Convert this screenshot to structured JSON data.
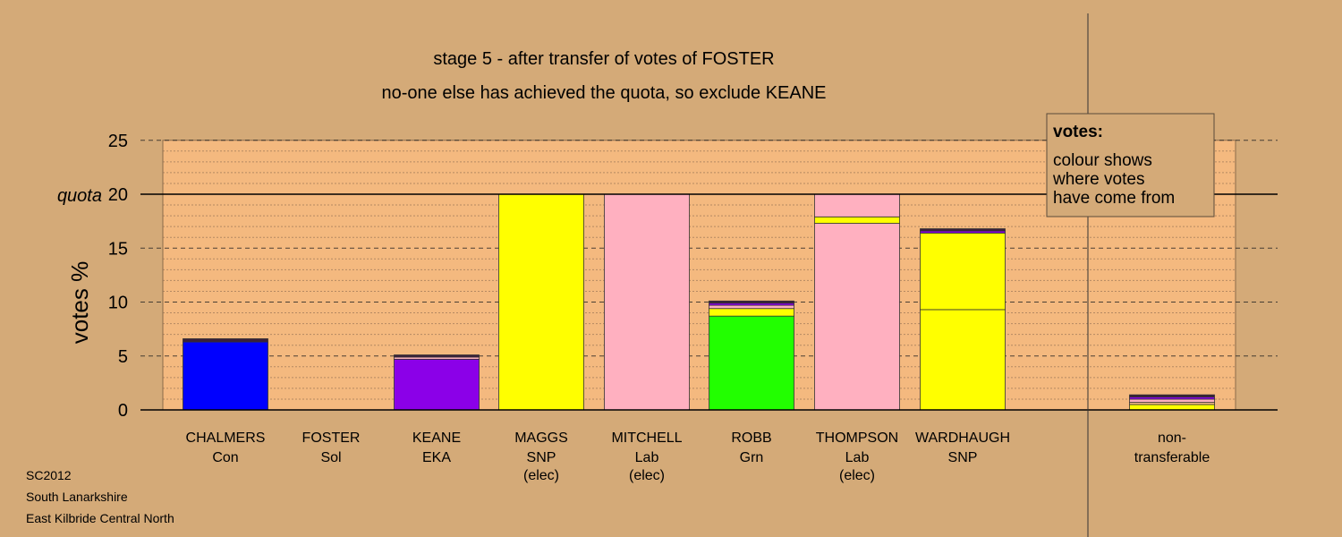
{
  "colors": {
    "background": "#d4aa78",
    "plot_area": "#f4b97f",
    "Con": "#0000ff",
    "EKA": "#8b00e8",
    "SNP": "#ffff00",
    "Lab": "#ffb0c0",
    "Grn": "#22ff00",
    "dark": "#3a1f3a"
  },
  "chart_data": {
    "type": "bar",
    "title": "stage 5 - after transfer of votes of FOSTER",
    "subtitle": "no-one else has achieved the quota, so exclude KEANE",
    "ylabel": "votes %",
    "ylim": [
      0,
      25
    ],
    "yticks": [
      "0",
      "5",
      "10",
      "15",
      "20",
      "25"
    ],
    "quota": {
      "value": 20,
      "label": "quota"
    },
    "legend": {
      "title": "votes:",
      "lines": [
        "colour shows",
        "where votes",
        "have come from"
      ],
      "placement": "top-right"
    },
    "categories": [
      {
        "lines": [
          "CHALMERS",
          "Con"
        ],
        "segments": [
          {
            "value": 6.3,
            "color": "#0000ff"
          },
          {
            "value": 0.3,
            "color": "#3a1f3a"
          }
        ]
      },
      {
        "lines": [
          "FOSTER",
          "Sol"
        ],
        "segments": []
      },
      {
        "lines": [
          "KEANE",
          "EKA"
        ],
        "segments": [
          {
            "value": 4.7,
            "color": "#8b00e8"
          },
          {
            "value": 0.2,
            "color": "#ffb0c0"
          },
          {
            "value": 0.2,
            "color": "#3a1f3a"
          }
        ]
      },
      {
        "lines": [
          "MAGGS",
          "SNP",
          "(elec)"
        ],
        "segments": [
          {
            "value": 20,
            "color": "#ffff00"
          }
        ]
      },
      {
        "lines": [
          "MITCHELL",
          "Lab",
          "(elec)"
        ],
        "segments": [
          {
            "value": 20,
            "color": "#ffb0c0"
          }
        ]
      },
      {
        "lines": [
          "ROBB",
          "Grn"
        ],
        "segments": [
          {
            "value": 8.7,
            "color": "#22ff00"
          },
          {
            "value": 0.7,
            "color": "#ffff00"
          },
          {
            "value": 0.3,
            "color": "#ffb0c0"
          },
          {
            "value": 0.2,
            "color": "#8b00e8"
          },
          {
            "value": 0.2,
            "color": "#3a1f3a"
          }
        ]
      },
      {
        "lines": [
          "THOMPSON",
          "Lab",
          "(elec)"
        ],
        "segments": [
          {
            "value": 17.3,
            "color": "#ffb0c0"
          },
          {
            "value": 0.6,
            "color": "#ffff00"
          },
          {
            "value": 2.1,
            "color": "#ffb0c0"
          }
        ]
      },
      {
        "lines": [
          "WARDHAUGH",
          "SNP"
        ],
        "segments": [
          {
            "value": 9.3,
            "color": "#ffff00"
          },
          {
            "value": 7.1,
            "color": "#ffff00"
          },
          {
            "value": 0.2,
            "color": "#8b00e8"
          },
          {
            "value": 0.2,
            "color": "#3a1f3a"
          }
        ]
      }
    ],
    "nontransferable": {
      "lines": [
        "non-",
        "transferable"
      ],
      "segments": [
        {
          "value": 0.5,
          "color": "#ffff00"
        },
        {
          "value": 0.2,
          "color": "#f4b97f"
        },
        {
          "value": 0.3,
          "color": "#ffb0c0"
        },
        {
          "value": 0.2,
          "color": "#8b00e8"
        },
        {
          "value": 0.2,
          "color": "#3a1f3a"
        }
      ]
    }
  },
  "footer": [
    "SC2012",
    "South Lanarkshire",
    "East Kilbride Central North"
  ]
}
